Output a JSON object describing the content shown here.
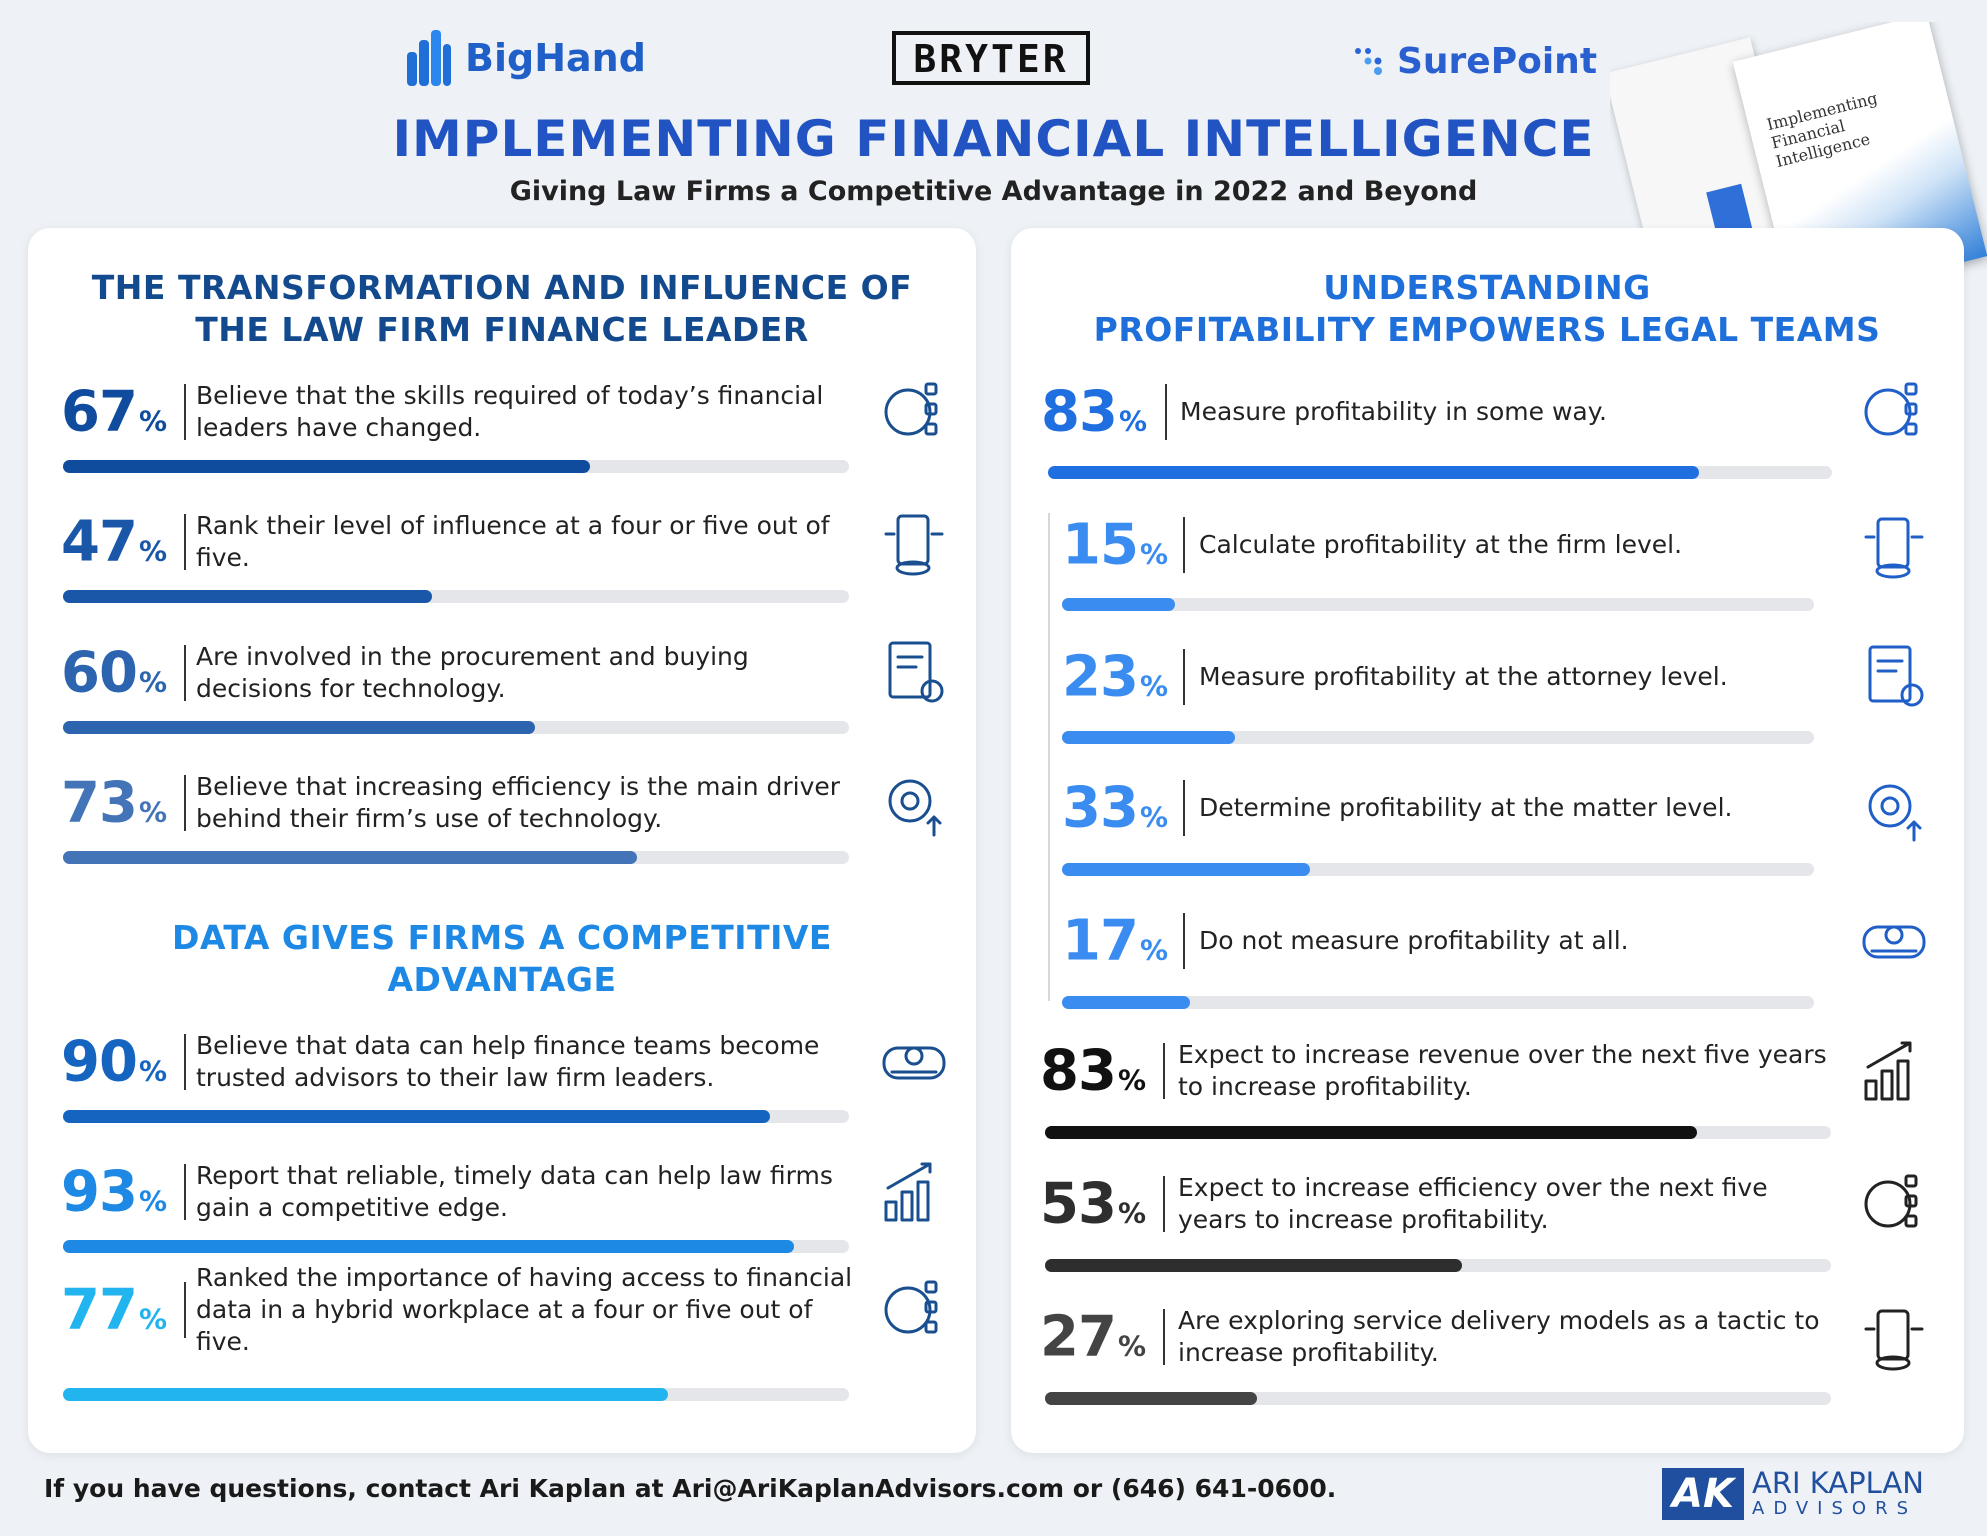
{
  "header": {
    "logos": [
      "BigHand",
      "BRYTER",
      "SurePoint"
    ],
    "title": "IMPLEMENTING FINANCIAL INTELLIGENCE",
    "subtitle": "Giving Law Firms a Competitive Advantage in 2022 and Beyond"
  },
  "book": {
    "title": "Implementing Financial Intelligence"
  },
  "unit": "%",
  "left_panel": {
    "sections": [
      {
        "heading": [
          "THE TRANSFORMATION AND INFLUENCE OF",
          "THE LAW FIRM FINANCE LEADER"
        ],
        "color": "#134a8e",
        "items": [
          {
            "value": 67,
            "text": "Believe that the skills required of today’s financial leaders have changed.",
            "color": "#0f4c9e"
          },
          {
            "value": 47,
            "text": "Rank their level of influence at a four or five out of five.",
            "color": "#1b57a8"
          },
          {
            "value": 60,
            "text": "Are involved in the procurement and buying decisions for technology.",
            "color": "#2c64b0"
          },
          {
            "value": 73,
            "text": "Believe that increasing efficiency is the main driver behind their firm’s use of technology.",
            "color": "#4474b8"
          }
        ]
      },
      {
        "heading": [
          "DATA GIVES FIRMS A COMPETITIVE",
          "ADVANTAGE"
        ],
        "color": "#1e88e5",
        "items": [
          {
            "value": 90,
            "text": "Believe that data can help finance teams become trusted advisors to their law firm leaders.",
            "color": "#1565c0"
          },
          {
            "value": 93,
            "text": "Report that reliable, timely data can help law firms gain a competitive edge.",
            "color": "#1e88e5"
          },
          {
            "value": 77,
            "text": "Ranked the importance of having access to financial data in a hybrid workplace at a four or five out of five.",
            "color": "#22b4ee"
          }
        ]
      }
    ]
  },
  "right_panel": {
    "heading": [
      "UNDERSTANDING",
      "PROFITABILITY EMPOWERS LEGAL TEAMS"
    ],
    "color": "#1e6fd9",
    "groups": [
      {
        "items": [
          {
            "value": 83,
            "text": "Measure profitability in some way.",
            "color": "#1f6fe0"
          }
        ]
      },
      {
        "items": [
          {
            "value": 15,
            "text": "Calculate profitability at the firm level.",
            "color": "#3a8cf0"
          },
          {
            "value": 23,
            "text": "Measure profitability at the attorney level.",
            "color": "#3a8cf0"
          },
          {
            "value": 33,
            "text": "Determine profitability at the matter level.",
            "color": "#3a8cf0"
          },
          {
            "value": 17,
            "text": "Do not measure profitability at all.",
            "color": "#3a8cf0"
          }
        ]
      },
      {
        "items": [
          {
            "value": 83,
            "text": "Expect to increase revenue over the next five years to increase profitability.",
            "color": "#111111"
          },
          {
            "value": 53,
            "text": "Expect to increase efficiency over the next five years to increase profitability.",
            "color": "#2e2e2e"
          },
          {
            "value": 27,
            "text": "Are exploring service delivery models as a tactic to increase profitability.",
            "color": "#444444"
          }
        ]
      }
    ]
  },
  "footer": {
    "contact": "If you have questions, contact Ari Kaplan at Ari@AriKaplanAdvisors.com or (646) 641-0600.",
    "logo": {
      "mark": "AK",
      "name": "ARI KAPLAN",
      "tagline": "ADVISORS"
    }
  }
}
